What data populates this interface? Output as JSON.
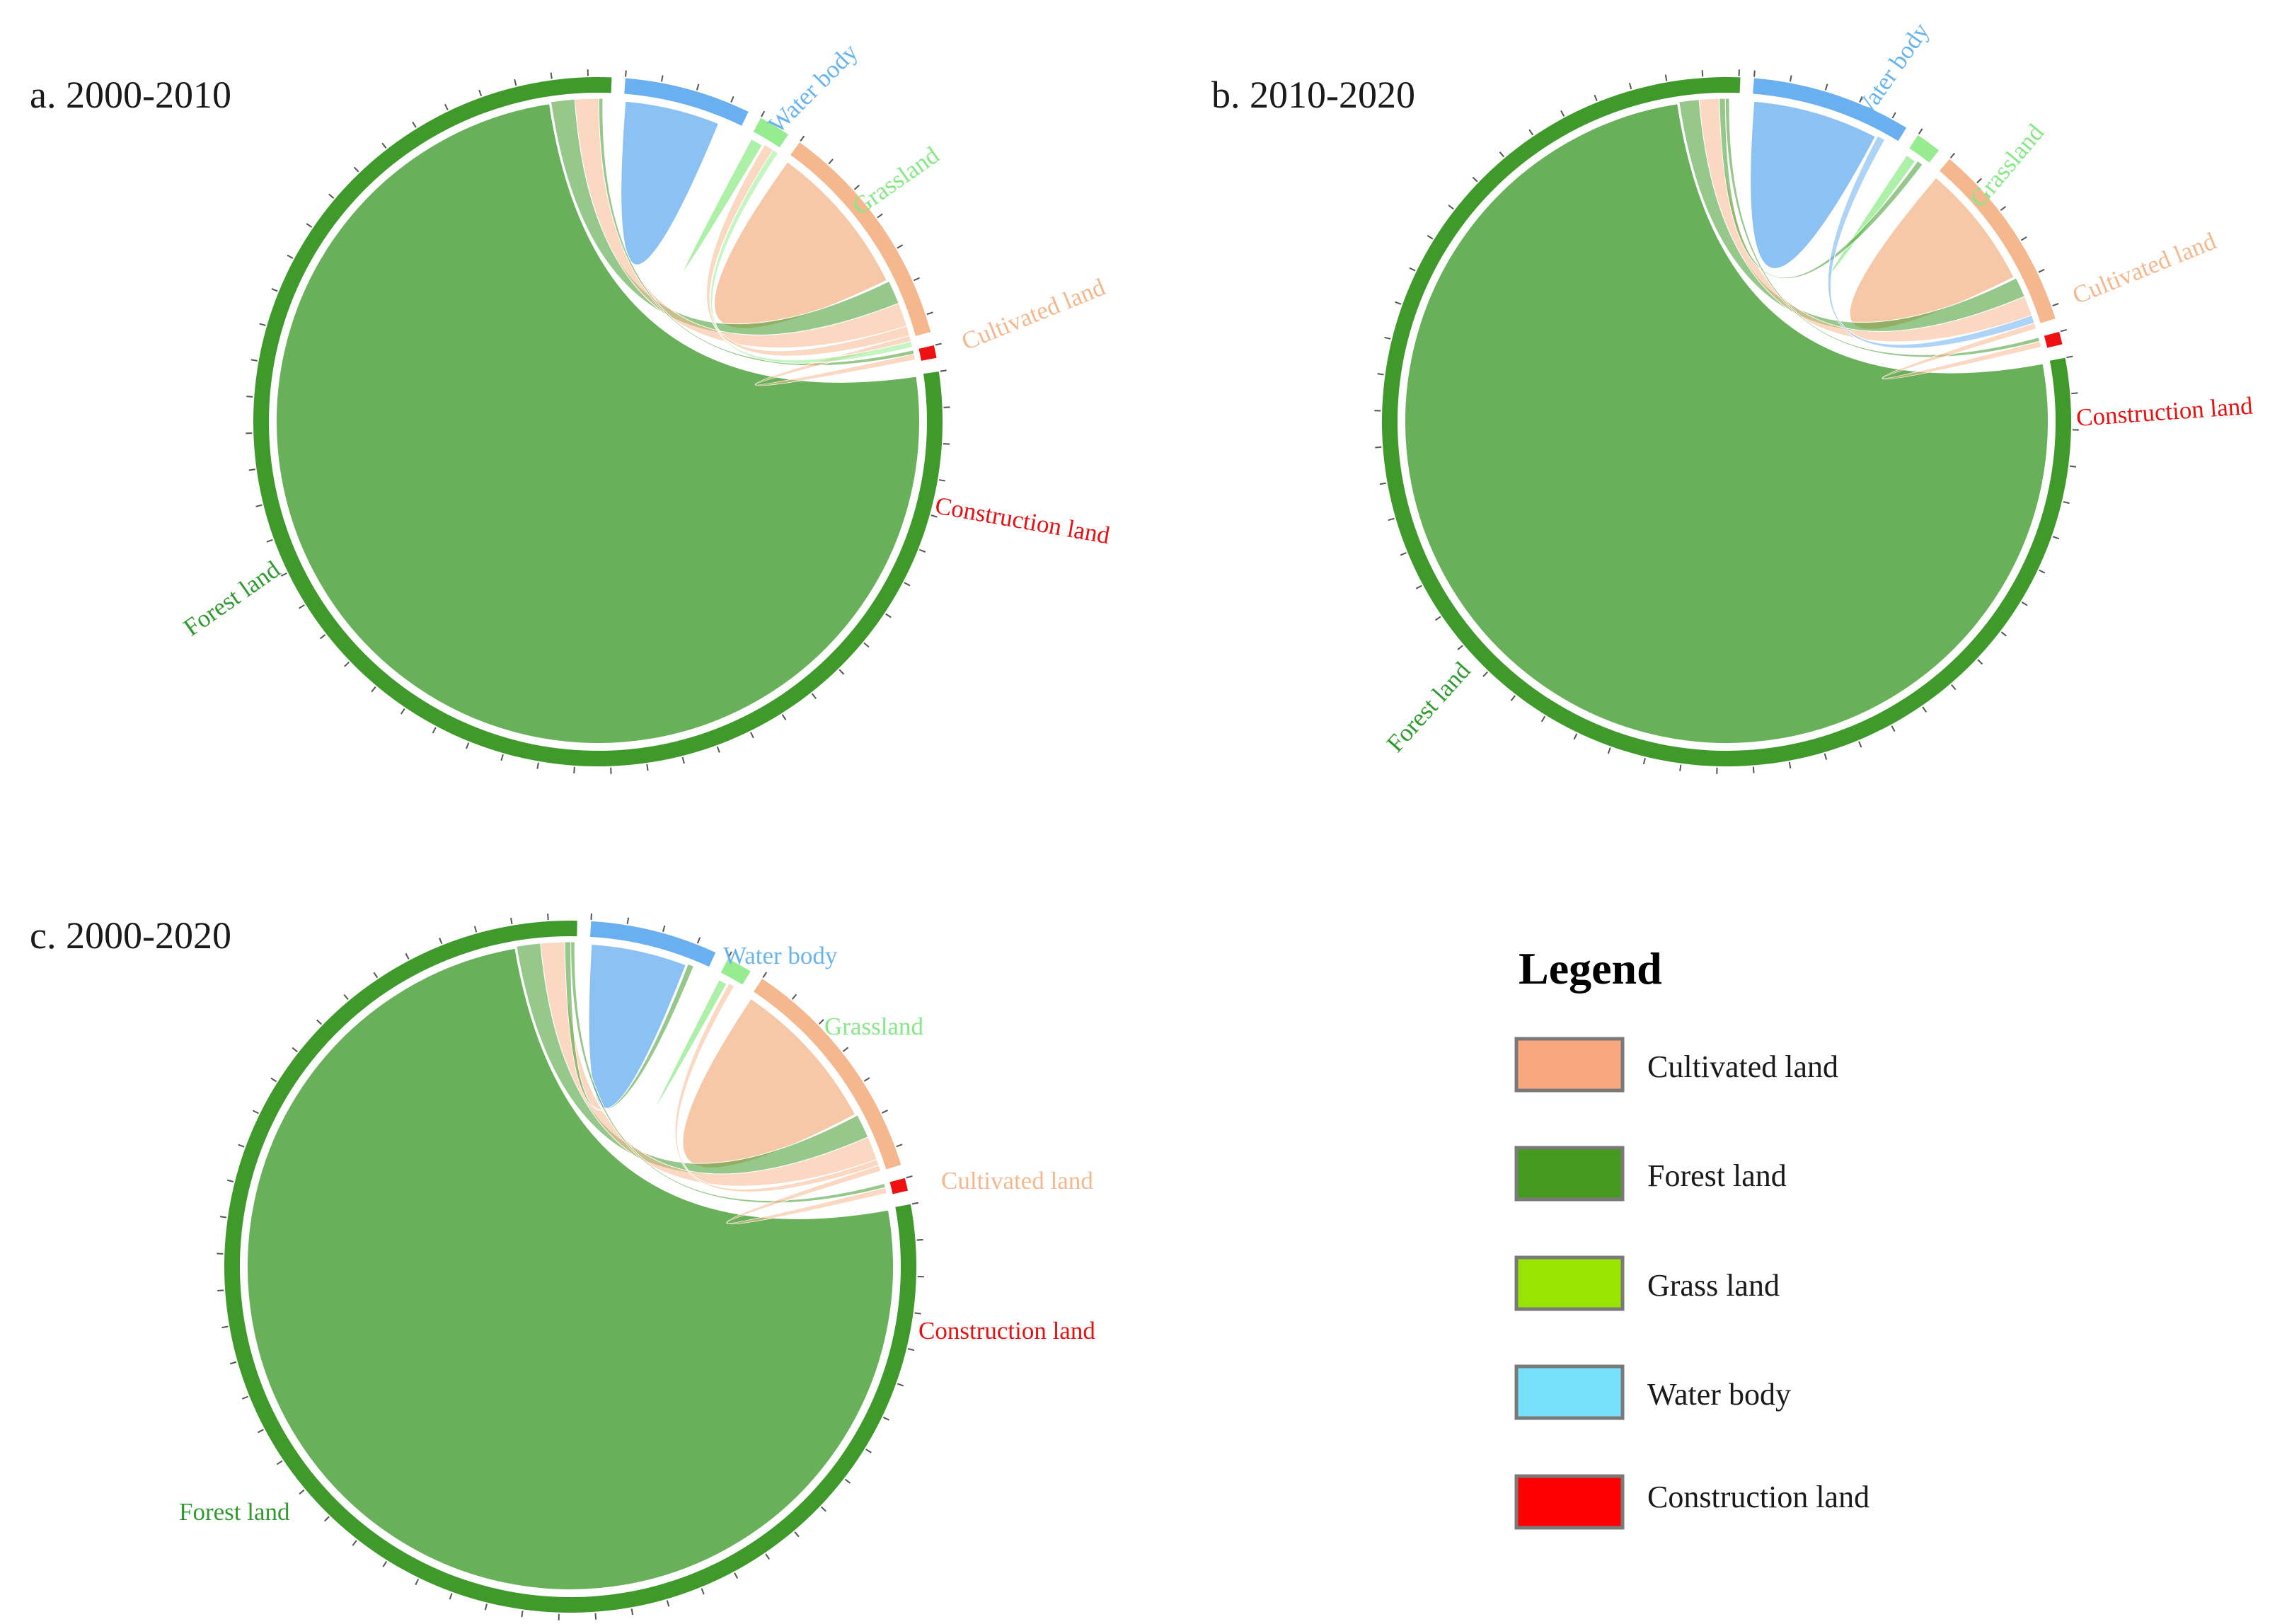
{
  "colors": {
    "Forest land": "#3f9a2b",
    "Water body": "#6ab0f0",
    "Grassland": "#96ec8e",
    "Cultivated land": "#f5b88e",
    "Construction land": "#ee1111"
  },
  "label_colors": {
    "Forest land": "#2f9a2f",
    "Water body": "#68b4ee",
    "Grassland": "#86e886",
    "Cultivated land": "#f5b88e",
    "Construction land": "#e81010"
  },
  "legend": {
    "title": "Legend",
    "items": [
      {
        "label": "Cultivated land",
        "color": "#f9a77e"
      },
      {
        "label": "Forest land",
        "color": "#45991e"
      },
      {
        "label": "Grass land",
        "color": "#99e402"
      },
      {
        "label": "Water body",
        "color": "#76e1fa"
      },
      {
        "label": "Construction land",
        "color": "#fe0000"
      }
    ]
  },
  "chart_data": [
    {
      "type": "chord",
      "title": "a. 2000-2010",
      "categories": [
        "Forest land",
        "Water body",
        "Grassland",
        "Cultivated land",
        "Construction land"
      ],
      "segment_labels": [
        "Forest land",
        "Water body",
        "Grassland",
        "Cultivated land",
        "Construction land"
      ],
      "sectors": [
        {
          "name": "Forest land",
          "share": 79.0
        },
        {
          "name": "Water body",
          "share": 6.0
        },
        {
          "name": "Grassland",
          "share": 1.5
        },
        {
          "name": "Cultivated land",
          "share": 11.0
        },
        {
          "name": "Construction land",
          "share": 0.6
        }
      ],
      "flows": [
        {
          "from": "Forest land",
          "to": "Forest land",
          "value": 76.0
        },
        {
          "from": "Water body",
          "to": "Water body",
          "value": 5.0
        },
        {
          "from": "Grassland",
          "to": "Grassland",
          "value": 0.8
        },
        {
          "from": "Cultivated land",
          "to": "Cultivated land",
          "value": 8.0
        },
        {
          "from": "Forest land",
          "to": "Cultivated land",
          "value": 1.2
        },
        {
          "from": "Cultivated land",
          "to": "Forest land",
          "value": 1.2
        },
        {
          "from": "Cultivated land",
          "to": "Grassland",
          "value": 0.5
        },
        {
          "from": "Forest land",
          "to": "Construction land",
          "value": 0.2
        },
        {
          "from": "Cultivated land",
          "to": "Construction land",
          "value": 0.3
        },
        {
          "from": "Grassland",
          "to": "Cultivated land",
          "value": 0.3
        }
      ]
    },
    {
      "type": "chord",
      "title": "b. 2010-2020",
      "categories": [
        "Forest land",
        "Water body",
        "Grassland",
        "Cultivated land",
        "Construction land"
      ],
      "segment_labels": [
        "Forest land",
        "Water body",
        "Grassland",
        "Cultivated land",
        "Construction land"
      ],
      "sectors": [
        {
          "name": "Forest land",
          "share": 79.0
        },
        {
          "name": "Water body",
          "share": 7.5
        },
        {
          "name": "Grassland",
          "share": 1.2
        },
        {
          "name": "Cultivated land",
          "share": 9.0
        },
        {
          "name": "Construction land",
          "share": 0.6
        }
      ],
      "flows": [
        {
          "from": "Forest land",
          "to": "Forest land",
          "value": 76.0
        },
        {
          "from": "Water body",
          "to": "Water body",
          "value": 6.5
        },
        {
          "from": "Grassland",
          "to": "Grassland",
          "value": 0.7
        },
        {
          "from": "Cultivated land",
          "to": "Cultivated land",
          "value": 6.5
        },
        {
          "from": "Forest land",
          "to": "Cultivated land",
          "value": 1.0
        },
        {
          "from": "Cultivated land",
          "to": "Forest land",
          "value": 1.0
        },
        {
          "from": "Forest land",
          "to": "Grassland",
          "value": 0.3
        },
        {
          "from": "Water body",
          "to": "Cultivated land",
          "value": 0.4
        },
        {
          "from": "Forest land",
          "to": "Construction land",
          "value": 0.2
        },
        {
          "from": "Cultivated land",
          "to": "Construction land",
          "value": 0.3
        }
      ]
    },
    {
      "type": "chord",
      "title": "c. 2000-2020",
      "categories": [
        "Forest land",
        "Water body",
        "Grassland",
        "Cultivated land",
        "Construction land"
      ],
      "segment_labels": [
        "Forest land",
        "Water body",
        "Grassland",
        "Cultivated land",
        "Construction land"
      ],
      "sectors": [
        {
          "name": "Forest land",
          "share": 79.0
        },
        {
          "name": "Water body",
          "share": 6.0
        },
        {
          "name": "Grassland",
          "share": 1.2
        },
        {
          "name": "Cultivated land",
          "share": 11.0
        },
        {
          "name": "Construction land",
          "share": 0.6
        }
      ],
      "flows": [
        {
          "from": "Forest land",
          "to": "Forest land",
          "value": 76.0
        },
        {
          "from": "Water body",
          "to": "Water body",
          "value": 5.0
        },
        {
          "from": "Grassland",
          "to": "Grassland",
          "value": 0.6
        },
        {
          "from": "Cultivated land",
          "to": "Cultivated land",
          "value": 8.0
        },
        {
          "from": "Forest land",
          "to": "Cultivated land",
          "value": 1.2
        },
        {
          "from": "Cultivated land",
          "to": "Forest land",
          "value": 1.2
        },
        {
          "from": "Forest land",
          "to": "Water body",
          "value": 0.3
        },
        {
          "from": "Cultivated land",
          "to": "Grassland",
          "value": 0.3
        },
        {
          "from": "Forest land",
          "to": "Construction land",
          "value": 0.2
        },
        {
          "from": "Cultivated land",
          "to": "Construction land",
          "value": 0.3
        }
      ]
    }
  ]
}
